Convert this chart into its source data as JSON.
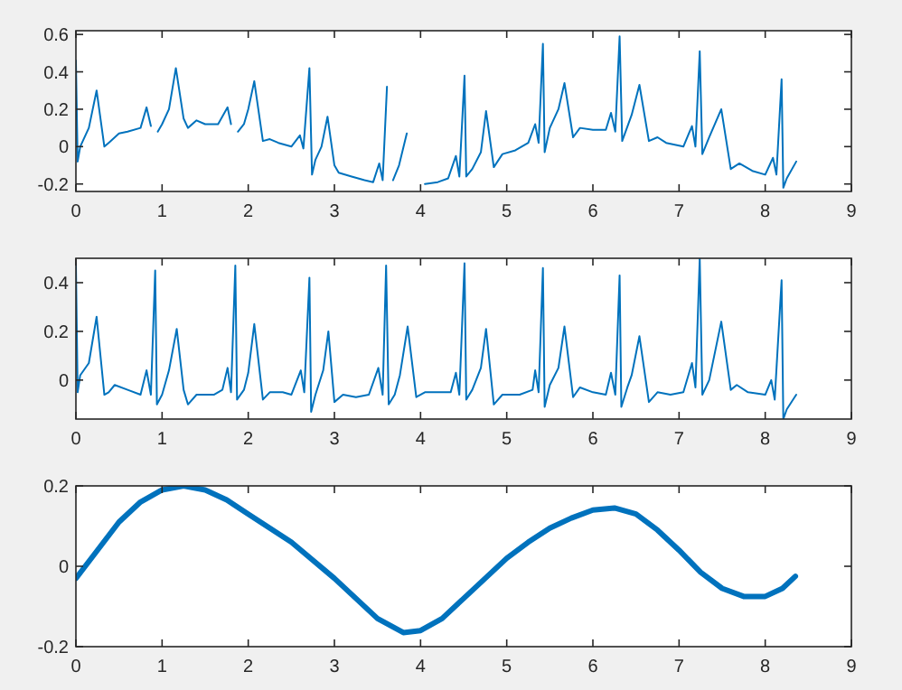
{
  "chart_data": [
    {
      "type": "line",
      "xlim": [
        0,
        9
      ],
      "xticks": [
        0,
        1,
        2,
        3,
        4,
        5,
        6,
        7,
        8,
        9
      ],
      "ylim": [
        -0.24,
        0.62
      ],
      "yticks": [
        -0.2,
        0,
        0.2,
        0.4,
        0.6
      ],
      "x": [
        0,
        0.02,
        0.05,
        0.15,
        0.24,
        0.33,
        0.38,
        0.5,
        0.6,
        0.75,
        0.82,
        0.87,
        0.92,
        0.95,
        1.0,
        1.08,
        1.16,
        1.25,
        1.3,
        1.4,
        1.5,
        1.65,
        1.76,
        1.8,
        1.85,
        1.88,
        1.95,
        2.0,
        2.07,
        2.17,
        2.25,
        2.35,
        2.5,
        2.6,
        2.64,
        2.71,
        2.74,
        2.78,
        2.85,
        2.92,
        3.0,
        3.05,
        3.2,
        3.35,
        3.45,
        3.52,
        3.56,
        3.61,
        3.63,
        3.68,
        3.75,
        3.84,
        3.95,
        4.05,
        4.2,
        4.32,
        4.41,
        4.45,
        4.51,
        4.53,
        4.6,
        4.7,
        4.76,
        4.85,
        4.95,
        5.1,
        5.25,
        5.33,
        5.37,
        5.42,
        5.44,
        5.5,
        5.6,
        5.67,
        5.77,
        5.85,
        6.0,
        6.15,
        6.21,
        6.26,
        6.31,
        6.34,
        6.45,
        6.54,
        6.65,
        6.75,
        6.85,
        7.05,
        7.15,
        7.19,
        7.24,
        7.27,
        7.35,
        7.49,
        7.6,
        7.7,
        7.85,
        8.0,
        8.09,
        8.13,
        8.19,
        8.21,
        8.25,
        8.36
      ],
      "series": [
        {
          "color": "#0072bd",
          "values": [
            0.46,
            -0.08,
            0,
            0.1,
            0.3,
            0,
            0.02,
            0.07,
            0.08,
            0.1,
            0.21,
            0.11,
            null,
            0.08,
            0.12,
            0.2,
            0.42,
            0.15,
            0.1,
            0.14,
            0.12,
            0.12,
            0.21,
            0.12,
            null,
            0.08,
            0.12,
            0.2,
            0.35,
            0.03,
            0.04,
            0.02,
            0,
            0.06,
            -0.01,
            0.42,
            -0.15,
            -0.07,
            0,
            0.16,
            -0.1,
            -0.14,
            -0.16,
            -0.18,
            -0.19,
            -0.09,
            -0.18,
            0.32,
            null,
            -0.18,
            -0.1,
            0.07,
            null,
            -0.2,
            -0.19,
            -0.17,
            -0.05,
            -0.16,
            0.38,
            -0.16,
            -0.12,
            -0.03,
            0.19,
            -0.11,
            -0.04,
            -0.02,
            0.02,
            0.12,
            0.02,
            0.55,
            -0.03,
            0.1,
            0.2,
            0.34,
            0.05,
            0.1,
            0.09,
            0.09,
            0.18,
            0.08,
            0.59,
            0.03,
            0.17,
            0.33,
            0.03,
            0.05,
            0.02,
            0,
            0.11,
            0,
            0.51,
            -0.04,
            0.05,
            0.2,
            -0.12,
            -0.09,
            -0.13,
            -0.15,
            -0.06,
            -0.15,
            0.36,
            -0.22,
            -0.17,
            -0.08
          ]
        }
      ]
    },
    {
      "type": "line",
      "xlim": [
        0,
        9
      ],
      "xticks": [
        0,
        1,
        2,
        3,
        4,
        5,
        6,
        7,
        8,
        9
      ],
      "ylim": [
        -0.16,
        0.5
      ],
      "yticks": [
        0,
        0.2,
        0.4
      ],
      "x": [
        0,
        0.02,
        0.05,
        0.15,
        0.24,
        0.33,
        0.38,
        0.45,
        0.6,
        0.75,
        0.82,
        0.87,
        0.92,
        0.94,
        1.0,
        1.08,
        1.17,
        1.25,
        1.3,
        1.4,
        1.6,
        1.7,
        1.76,
        1.8,
        1.85,
        1.87,
        1.95,
        2.0,
        2.07,
        2.17,
        2.25,
        2.4,
        2.5,
        2.61,
        2.65,
        2.71,
        2.73,
        2.78,
        2.87,
        2.93,
        3.0,
        3.1,
        3.25,
        3.4,
        3.51,
        3.56,
        3.6,
        3.63,
        3.7,
        3.76,
        3.85,
        3.95,
        4.05,
        4.2,
        4.35,
        4.41,
        4.45,
        4.51,
        4.53,
        4.6,
        4.7,
        4.76,
        4.85,
        4.95,
        5.15,
        5.3,
        5.33,
        5.37,
        5.42,
        5.44,
        5.5,
        5.6,
        5.67,
        5.77,
        5.85,
        6.0,
        6.15,
        6.21,
        6.26,
        6.31,
        6.33,
        6.4,
        6.45,
        6.54,
        6.65,
        6.75,
        6.9,
        7.05,
        7.15,
        7.19,
        7.24,
        7.27,
        7.35,
        7.49,
        7.6,
        7.67,
        7.8,
        8.0,
        8.07,
        8.11,
        8.19,
        8.21,
        8.25,
        8.36
      ],
      "series": [
        {
          "color": "#0072bd",
          "values": [
            0.48,
            -0.05,
            0.02,
            0.07,
            0.26,
            -0.06,
            -0.05,
            -0.02,
            -0.04,
            -0.06,
            0.04,
            -0.06,
            0.45,
            -0.1,
            -0.06,
            0.04,
            0.21,
            -0.04,
            -0.1,
            -0.06,
            -0.06,
            -0.04,
            0.05,
            -0.05,
            0.47,
            -0.08,
            -0.04,
            0.03,
            0.23,
            -0.08,
            -0.05,
            -0.05,
            -0.06,
            0.04,
            -0.05,
            0.42,
            -0.13,
            -0.06,
            0.04,
            0.2,
            -0.09,
            -0.06,
            -0.07,
            -0.06,
            0.05,
            -0.06,
            0.47,
            -0.1,
            -0.06,
            0.02,
            0.22,
            -0.07,
            -0.05,
            -0.05,
            -0.05,
            0.03,
            -0.06,
            0.48,
            -0.08,
            -0.04,
            0.05,
            0.21,
            -0.1,
            -0.06,
            -0.06,
            -0.04,
            0.04,
            -0.05,
            0.46,
            -0.11,
            -0.02,
            0.05,
            0.22,
            -0.07,
            -0.03,
            -0.05,
            -0.06,
            0.03,
            -0.06,
            0.43,
            -0.11,
            -0.03,
            0.02,
            0.18,
            -0.09,
            -0.05,
            -0.06,
            -0.05,
            0.07,
            -0.03,
            0.5,
            -0.06,
            0,
            0.24,
            -0.04,
            -0.02,
            -0.05,
            -0.06,
            0,
            -0.08,
            0.41,
            -0.16,
            -0.12,
            -0.06
          ]
        }
      ]
    },
    {
      "type": "line",
      "xlim": [
        0,
        9
      ],
      "xticks": [
        0,
        1,
        2,
        3,
        4,
        5,
        6,
        7,
        8,
        9
      ],
      "ylim": [
        -0.2,
        0.2
      ],
      "yticks": [
        -0.2,
        0,
        0.2
      ],
      "x": [
        0,
        0.25,
        0.5,
        0.75,
        1,
        1.25,
        1.5,
        1.75,
        2,
        2.5,
        3,
        3.25,
        3.5,
        3.8,
        4,
        4.25,
        4.5,
        4.75,
        5,
        5.25,
        5.5,
        5.75,
        6,
        6.25,
        6.5,
        6.75,
        7,
        7.25,
        7.5,
        7.75,
        8,
        8.2,
        8.35
      ],
      "series": [
        {
          "color": "#0072bd",
          "values": [
            -0.03,
            0.04,
            0.11,
            0.16,
            0.19,
            0.2,
            0.19,
            0.165,
            0.13,
            0.06,
            -0.03,
            -0.08,
            -0.13,
            -0.165,
            -0.16,
            -0.13,
            -0.08,
            -0.03,
            0.02,
            0.06,
            0.095,
            0.12,
            0.14,
            0.145,
            0.13,
            0.09,
            0.04,
            -0.015,
            -0.055,
            -0.075,
            -0.075,
            -0.055,
            -0.025
          ]
        }
      ]
    }
  ]
}
